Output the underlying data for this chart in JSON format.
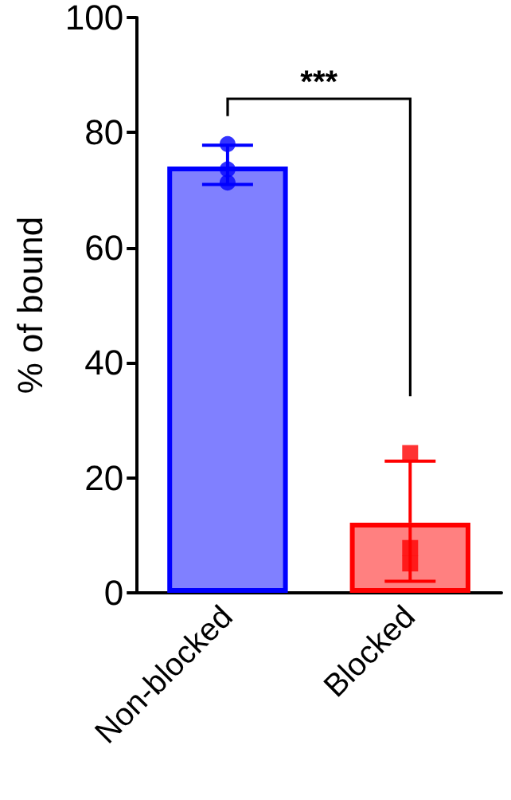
{
  "chart_data": {
    "type": "bar",
    "ylabel": "% of bound",
    "categories": [
      "Non-blocked",
      "Blocked"
    ],
    "series": [
      {
        "colors": [
          "#8080ff",
          "#ff8080"
        ],
        "values": [
          74.1,
          12.2
        ],
        "errors": [
          [
            71.0,
            77.8
          ],
          [
            2.0,
            22.9
          ]
        ]
      },
      {
        "type": "scatter",
        "marker": "circle",
        "color": "#0000ff",
        "x": [
          "Non-blocked",
          "Non-blocked",
          "Non-blocked"
        ],
        "values": [
          78.0,
          73.6,
          71.3
        ]
      },
      {
        "type": "scatter",
        "marker": "square",
        "color": "#ff0000",
        "x": [
          "Blocked",
          "Blocked",
          "Blocked"
        ],
        "values": [
          24.3,
          7.8,
          5.1
        ]
      }
    ],
    "ylim": [
      0,
      100
    ],
    "yticks": [
      0,
      20,
      40,
      60,
      80,
      100
    ],
    "grid": false,
    "annotations": [
      "***"
    ]
  }
}
